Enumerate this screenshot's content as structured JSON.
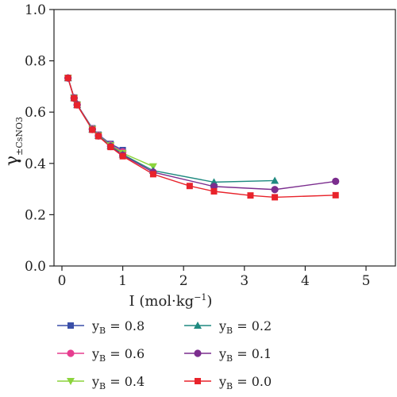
{
  "chart_data": {
    "type": "line",
    "title": "",
    "xlabel": {
      "base": "I (mol·kg",
      "sup": "−1",
      "end": ")"
    },
    "ylabel": {
      "main": "γ",
      "sub": "±CsNO3"
    },
    "xlim": [
      0,
      5.5
    ],
    "ylim": [
      0,
      1.0
    ],
    "xticks": [
      "0",
      "1",
      "2",
      "3",
      "4",
      "5"
    ],
    "yticks": [
      "0.0",
      "0.2",
      "0.4",
      "0.6",
      "0.8",
      "1.0"
    ],
    "grid": false,
    "legend_position": "bottom",
    "series": [
      {
        "label_main": "y",
        "label_sub": "B",
        "label_end": " = 0.8",
        "color": "#3a4fa8",
        "marker": "square",
        "x": [
          0.1,
          0.2,
          0.25,
          0.5,
          0.6,
          0.8,
          1.0
        ],
        "y": [
          0.733,
          0.657,
          0.63,
          0.537,
          0.512,
          0.476,
          0.452
        ]
      },
      {
        "label_main": "y",
        "label_sub": "B",
        "label_end": " = 0.6",
        "color": "#e63d8f",
        "marker": "circle",
        "x": [
          0.1,
          0.2,
          0.25,
          0.5,
          0.6,
          0.8,
          1.0
        ],
        "y": [
          0.733,
          0.656,
          0.63,
          0.535,
          0.51,
          0.472,
          0.445
        ]
      },
      {
        "label_main": "y",
        "label_sub": "B",
        "label_end": " = 0.4",
        "color": "#8cd43c",
        "marker": "triangle-down",
        "x": [
          0.1,
          0.2,
          0.25,
          0.5,
          0.6,
          0.8,
          1.0,
          1.5
        ],
        "y": [
          0.733,
          0.655,
          0.629,
          0.534,
          0.509,
          0.47,
          0.44,
          0.388
        ]
      },
      {
        "label_main": "y",
        "label_sub": "B",
        "label_end": " = 0.2",
        "color": "#1f8a80",
        "marker": "triangle-up",
        "x": [
          0.1,
          0.2,
          0.25,
          0.5,
          0.6,
          0.8,
          1.0,
          1.5,
          2.5,
          3.5
        ],
        "y": [
          0.733,
          0.655,
          0.628,
          0.533,
          0.508,
          0.468,
          0.435,
          0.372,
          0.327,
          0.333
        ]
      },
      {
        "label_main": "y",
        "label_sub": "B",
        "label_end": " = 0.1",
        "color": "#7b2d8e",
        "marker": "circle",
        "x": [
          0.1,
          0.2,
          0.25,
          0.5,
          0.6,
          0.8,
          1.0,
          1.5,
          2.5,
          3.5,
          4.5
        ],
        "y": [
          0.733,
          0.654,
          0.628,
          0.532,
          0.507,
          0.466,
          0.432,
          0.366,
          0.31,
          0.298,
          0.33
        ]
      },
      {
        "label_main": "y",
        "label_sub": "B",
        "label_end": " = 0.0",
        "color": "#e8232b",
        "marker": "square",
        "x": [
          0.1,
          0.2,
          0.25,
          0.5,
          0.6,
          0.8,
          1.0,
          1.5,
          2.1,
          2.5,
          3.1,
          3.5,
          4.5
        ],
        "y": [
          0.733,
          0.654,
          0.627,
          0.531,
          0.506,
          0.464,
          0.428,
          0.358,
          0.312,
          0.291,
          0.275,
          0.268,
          0.276
        ]
      }
    ]
  }
}
